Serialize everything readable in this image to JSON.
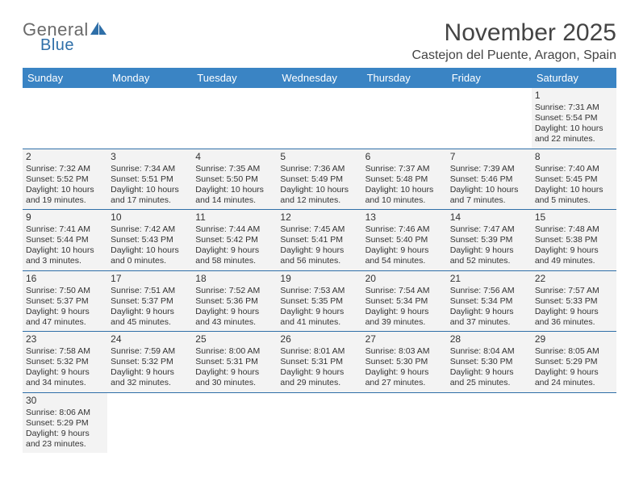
{
  "logo": {
    "general": "General",
    "blue": "Blue"
  },
  "title": "November 2025",
  "location": "Castejon del Puente, Aragon, Spain",
  "colors": {
    "header_bg": "#3a84c4",
    "header_text": "#ffffff",
    "cell_bg": "#f3f3f3",
    "border": "#2f6fa8"
  },
  "day_names": [
    "Sunday",
    "Monday",
    "Tuesday",
    "Wednesday",
    "Thursday",
    "Friday",
    "Saturday"
  ],
  "weeks": [
    [
      null,
      null,
      null,
      null,
      null,
      null,
      {
        "n": "1",
        "sunrise": "Sunrise: 7:31 AM",
        "sunset": "Sunset: 5:54 PM",
        "dl1": "Daylight: 10 hours",
        "dl2": "and 22 minutes."
      }
    ],
    [
      {
        "n": "2",
        "sunrise": "Sunrise: 7:32 AM",
        "sunset": "Sunset: 5:52 PM",
        "dl1": "Daylight: 10 hours",
        "dl2": "and 19 minutes."
      },
      {
        "n": "3",
        "sunrise": "Sunrise: 7:34 AM",
        "sunset": "Sunset: 5:51 PM",
        "dl1": "Daylight: 10 hours",
        "dl2": "and 17 minutes."
      },
      {
        "n": "4",
        "sunrise": "Sunrise: 7:35 AM",
        "sunset": "Sunset: 5:50 PM",
        "dl1": "Daylight: 10 hours",
        "dl2": "and 14 minutes."
      },
      {
        "n": "5",
        "sunrise": "Sunrise: 7:36 AM",
        "sunset": "Sunset: 5:49 PM",
        "dl1": "Daylight: 10 hours",
        "dl2": "and 12 minutes."
      },
      {
        "n": "6",
        "sunrise": "Sunrise: 7:37 AM",
        "sunset": "Sunset: 5:48 PM",
        "dl1": "Daylight: 10 hours",
        "dl2": "and 10 minutes."
      },
      {
        "n": "7",
        "sunrise": "Sunrise: 7:39 AM",
        "sunset": "Sunset: 5:46 PM",
        "dl1": "Daylight: 10 hours",
        "dl2": "and 7 minutes."
      },
      {
        "n": "8",
        "sunrise": "Sunrise: 7:40 AM",
        "sunset": "Sunset: 5:45 PM",
        "dl1": "Daylight: 10 hours",
        "dl2": "and 5 minutes."
      }
    ],
    [
      {
        "n": "9",
        "sunrise": "Sunrise: 7:41 AM",
        "sunset": "Sunset: 5:44 PM",
        "dl1": "Daylight: 10 hours",
        "dl2": "and 3 minutes."
      },
      {
        "n": "10",
        "sunrise": "Sunrise: 7:42 AM",
        "sunset": "Sunset: 5:43 PM",
        "dl1": "Daylight: 10 hours",
        "dl2": "and 0 minutes."
      },
      {
        "n": "11",
        "sunrise": "Sunrise: 7:44 AM",
        "sunset": "Sunset: 5:42 PM",
        "dl1": "Daylight: 9 hours",
        "dl2": "and 58 minutes."
      },
      {
        "n": "12",
        "sunrise": "Sunrise: 7:45 AM",
        "sunset": "Sunset: 5:41 PM",
        "dl1": "Daylight: 9 hours",
        "dl2": "and 56 minutes."
      },
      {
        "n": "13",
        "sunrise": "Sunrise: 7:46 AM",
        "sunset": "Sunset: 5:40 PM",
        "dl1": "Daylight: 9 hours",
        "dl2": "and 54 minutes."
      },
      {
        "n": "14",
        "sunrise": "Sunrise: 7:47 AM",
        "sunset": "Sunset: 5:39 PM",
        "dl1": "Daylight: 9 hours",
        "dl2": "and 52 minutes."
      },
      {
        "n": "15",
        "sunrise": "Sunrise: 7:48 AM",
        "sunset": "Sunset: 5:38 PM",
        "dl1": "Daylight: 9 hours",
        "dl2": "and 49 minutes."
      }
    ],
    [
      {
        "n": "16",
        "sunrise": "Sunrise: 7:50 AM",
        "sunset": "Sunset: 5:37 PM",
        "dl1": "Daylight: 9 hours",
        "dl2": "and 47 minutes."
      },
      {
        "n": "17",
        "sunrise": "Sunrise: 7:51 AM",
        "sunset": "Sunset: 5:37 PM",
        "dl1": "Daylight: 9 hours",
        "dl2": "and 45 minutes."
      },
      {
        "n": "18",
        "sunrise": "Sunrise: 7:52 AM",
        "sunset": "Sunset: 5:36 PM",
        "dl1": "Daylight: 9 hours",
        "dl2": "and 43 minutes."
      },
      {
        "n": "19",
        "sunrise": "Sunrise: 7:53 AM",
        "sunset": "Sunset: 5:35 PM",
        "dl1": "Daylight: 9 hours",
        "dl2": "and 41 minutes."
      },
      {
        "n": "20",
        "sunrise": "Sunrise: 7:54 AM",
        "sunset": "Sunset: 5:34 PM",
        "dl1": "Daylight: 9 hours",
        "dl2": "and 39 minutes."
      },
      {
        "n": "21",
        "sunrise": "Sunrise: 7:56 AM",
        "sunset": "Sunset: 5:34 PM",
        "dl1": "Daylight: 9 hours",
        "dl2": "and 37 minutes."
      },
      {
        "n": "22",
        "sunrise": "Sunrise: 7:57 AM",
        "sunset": "Sunset: 5:33 PM",
        "dl1": "Daylight: 9 hours",
        "dl2": "and 36 minutes."
      }
    ],
    [
      {
        "n": "23",
        "sunrise": "Sunrise: 7:58 AM",
        "sunset": "Sunset: 5:32 PM",
        "dl1": "Daylight: 9 hours",
        "dl2": "and 34 minutes."
      },
      {
        "n": "24",
        "sunrise": "Sunrise: 7:59 AM",
        "sunset": "Sunset: 5:32 PM",
        "dl1": "Daylight: 9 hours",
        "dl2": "and 32 minutes."
      },
      {
        "n": "25",
        "sunrise": "Sunrise: 8:00 AM",
        "sunset": "Sunset: 5:31 PM",
        "dl1": "Daylight: 9 hours",
        "dl2": "and 30 minutes."
      },
      {
        "n": "26",
        "sunrise": "Sunrise: 8:01 AM",
        "sunset": "Sunset: 5:31 PM",
        "dl1": "Daylight: 9 hours",
        "dl2": "and 29 minutes."
      },
      {
        "n": "27",
        "sunrise": "Sunrise: 8:03 AM",
        "sunset": "Sunset: 5:30 PM",
        "dl1": "Daylight: 9 hours",
        "dl2": "and 27 minutes."
      },
      {
        "n": "28",
        "sunrise": "Sunrise: 8:04 AM",
        "sunset": "Sunset: 5:30 PM",
        "dl1": "Daylight: 9 hours",
        "dl2": "and 25 minutes."
      },
      {
        "n": "29",
        "sunrise": "Sunrise: 8:05 AM",
        "sunset": "Sunset: 5:29 PM",
        "dl1": "Daylight: 9 hours",
        "dl2": "and 24 minutes."
      }
    ],
    [
      {
        "n": "30",
        "sunrise": "Sunrise: 8:06 AM",
        "sunset": "Sunset: 5:29 PM",
        "dl1": "Daylight: 9 hours",
        "dl2": "and 23 minutes."
      },
      null,
      null,
      null,
      null,
      null,
      null
    ]
  ]
}
